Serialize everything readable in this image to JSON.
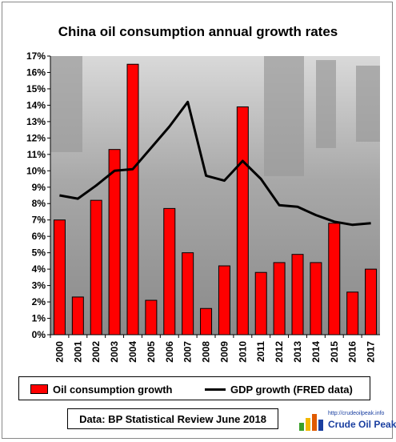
{
  "chart_data": {
    "type": "bar",
    "title": "China oil consumption annual growth rates",
    "categories": [
      "2000",
      "2001",
      "2002",
      "2003",
      "2004",
      "2005",
      "2006",
      "2007",
      "2008",
      "2009",
      "2010",
      "2011",
      "2012",
      "2013",
      "2014",
      "2015",
      "2016",
      "2017"
    ],
    "series": [
      {
        "name": "Oil consumption growth",
        "kind": "bar",
        "color": "#ff0000",
        "values": [
          7.0,
          2.3,
          8.2,
          11.3,
          16.5,
          2.1,
          7.7,
          5.0,
          1.6,
          4.2,
          13.9,
          3.8,
          4.4,
          4.9,
          4.4,
          6.8,
          2.6,
          4.0
        ]
      },
      {
        "name": "GDP growth (FRED data)",
        "kind": "line",
        "color": "#000000",
        "values": [
          8.5,
          8.3,
          9.1,
          10.0,
          10.1,
          11.4,
          12.7,
          14.2,
          9.7,
          9.4,
          10.6,
          9.5,
          7.9,
          7.8,
          7.3,
          6.9,
          6.7,
          6.8
        ]
      }
    ],
    "yticks": [
      "0%",
      "1%",
      "2%",
      "3%",
      "4%",
      "5%",
      "6%",
      "7%",
      "8%",
      "9%",
      "10%",
      "11%",
      "12%",
      "13%",
      "14%",
      "15%",
      "16%",
      "17%"
    ],
    "ylim": [
      0,
      17
    ],
    "grid": false,
    "legend_position": "bottom"
  },
  "source_note": "Data: BP Statistical Review June 2018",
  "logo": {
    "url": "http://crudeoilpeak.info",
    "name": "Crude Oil Peak"
  }
}
